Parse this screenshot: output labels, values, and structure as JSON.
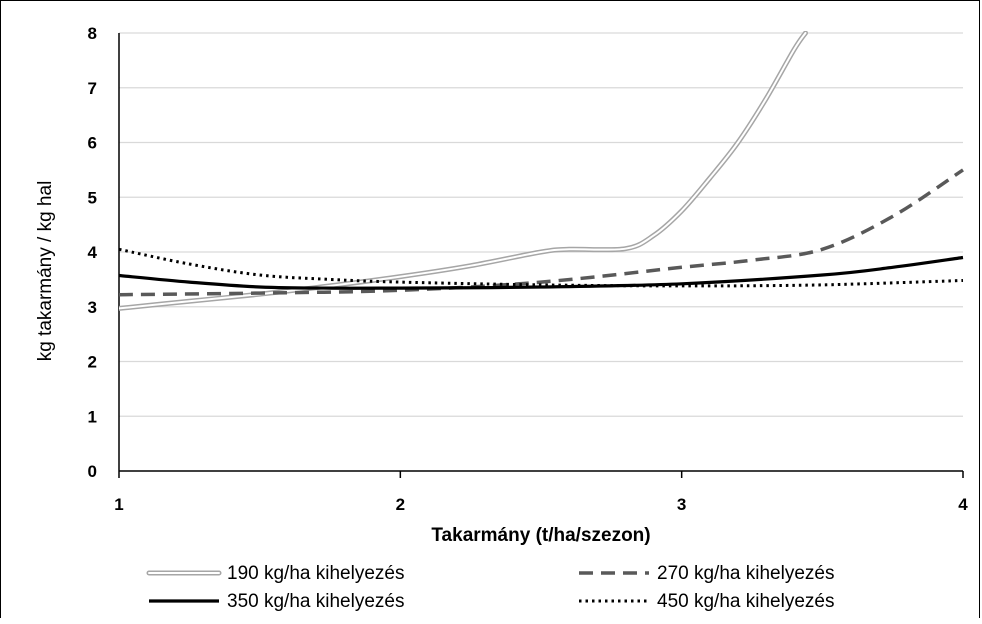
{
  "chart_data": {
    "type": "line",
    "xlabel": "Takarmány (t/ha/szezon)",
    "ylabel": "kg takarmány / kg hal",
    "xlim": [
      1,
      4
    ],
    "ylim": [
      0,
      8
    ],
    "x_ticks": [
      "1",
      "2",
      "3",
      "4"
    ],
    "y_ticks": [
      "0",
      "1",
      "2",
      "3",
      "4",
      "5",
      "6",
      "7",
      "8"
    ],
    "grid": "horizontal",
    "legend_position": "bottom",
    "series": [
      {
        "name": "190 kg/ha kihelyezés",
        "style": "double-gray",
        "color": "#a6a6a6",
        "points": [
          [
            1.0,
            2.97
          ],
          [
            1.25,
            3.1
          ],
          [
            1.5,
            3.23
          ],
          [
            1.75,
            3.38
          ],
          [
            2.0,
            3.55
          ],
          [
            2.25,
            3.75
          ],
          [
            2.5,
            4.0
          ],
          [
            2.6,
            4.05
          ],
          [
            2.8,
            4.06
          ],
          [
            2.9,
            4.3
          ],
          [
            3.0,
            4.75
          ],
          [
            3.1,
            5.35
          ],
          [
            3.2,
            6.0
          ],
          [
            3.3,
            6.8
          ],
          [
            3.4,
            7.7
          ],
          [
            3.44,
            8.0
          ]
        ]
      },
      {
        "name": "270 kg/ha kihelyezés",
        "style": "dashed",
        "color": "#595959",
        "points": [
          [
            1.0,
            3.22
          ],
          [
            1.5,
            3.25
          ],
          [
            2.0,
            3.3
          ],
          [
            2.5,
            3.45
          ],
          [
            3.0,
            3.72
          ],
          [
            3.25,
            3.85
          ],
          [
            3.5,
            4.05
          ],
          [
            3.75,
            4.65
          ],
          [
            4.0,
            5.5
          ]
        ]
      },
      {
        "name": "350 kg/ha kihelyezés",
        "style": "solid",
        "color": "#000000",
        "points": [
          [
            1.0,
            3.57
          ],
          [
            1.25,
            3.45
          ],
          [
            1.5,
            3.36
          ],
          [
            1.75,
            3.34
          ],
          [
            2.0,
            3.34
          ],
          [
            2.5,
            3.36
          ],
          [
            3.0,
            3.42
          ],
          [
            3.5,
            3.58
          ],
          [
            3.75,
            3.72
          ],
          [
            4.0,
            3.9
          ]
        ]
      },
      {
        "name": "450 kg/ha kihelyezés",
        "style": "dotted",
        "color": "#000000",
        "points": [
          [
            1.0,
            4.05
          ],
          [
            1.25,
            3.78
          ],
          [
            1.5,
            3.58
          ],
          [
            1.75,
            3.5
          ],
          [
            2.0,
            3.45
          ],
          [
            2.5,
            3.4
          ],
          [
            3.0,
            3.38
          ],
          [
            3.5,
            3.4
          ],
          [
            4.0,
            3.48
          ]
        ]
      }
    ]
  }
}
